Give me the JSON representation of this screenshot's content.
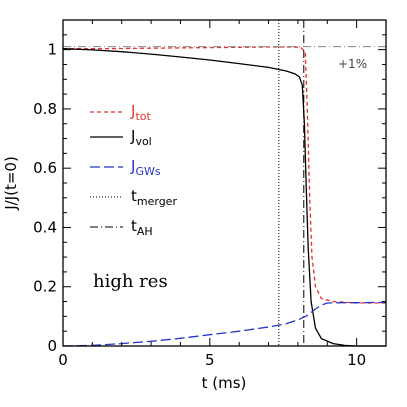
{
  "chart_data": {
    "type": "line",
    "xlabel": "t (ms)",
    "ylabel": "J/J(t=0)",
    "xlim": [
      0,
      11
    ],
    "ylim": [
      0,
      1.1
    ],
    "x_ticks": [
      0,
      5,
      10
    ],
    "y_ticks": [
      0,
      0.2,
      0.4,
      0.6,
      0.8,
      1
    ],
    "y_tick_labels": [
      "0",
      "0.2",
      "0.4",
      "0.6",
      "0.8",
      "1"
    ],
    "grid": false,
    "legend_placement": "left",
    "series": [
      {
        "name": "J_tot",
        "label_main": "J",
        "label_sub": "tot",
        "color": "#e8312f",
        "style": "short-dash",
        "points": [
          [
            0,
            1.003
          ],
          [
            1,
            1.003
          ],
          [
            2,
            1.004
          ],
          [
            3,
            1.005
          ],
          [
            4,
            1.006
          ],
          [
            5,
            1.007
          ],
          [
            6,
            1.008
          ],
          [
            7,
            1.009
          ],
          [
            7.8,
            1.009
          ],
          [
            8.1,
            1.008
          ],
          [
            8.25,
            0.99
          ],
          [
            8.32,
            0.8
          ],
          [
            8.4,
            0.5
          ],
          [
            8.48,
            0.3
          ],
          [
            8.6,
            0.2
          ],
          [
            8.8,
            0.16
          ],
          [
            9.2,
            0.15
          ],
          [
            10,
            0.145
          ],
          [
            10.5,
            0.145
          ],
          [
            11,
            0.145
          ]
        ]
      },
      {
        "name": "J_vol",
        "label_main": "J",
        "label_sub": "vol",
        "color": "#000000",
        "style": "solid",
        "points": [
          [
            0,
            1.003
          ],
          [
            1,
            0.999
          ],
          [
            2,
            0.993
          ],
          [
            3,
            0.985
          ],
          [
            4,
            0.975
          ],
          [
            5,
            0.965
          ],
          [
            6,
            0.953
          ],
          [
            7,
            0.94
          ],
          [
            7.6,
            0.928
          ],
          [
            7.9,
            0.918
          ],
          [
            8.05,
            0.908
          ],
          [
            8.15,
            0.88
          ],
          [
            8.22,
            0.75
          ],
          [
            8.28,
            0.55
          ],
          [
            8.35,
            0.33
          ],
          [
            8.45,
            0.15
          ],
          [
            8.6,
            0.06
          ],
          [
            8.8,
            0.025
          ],
          [
            9.2,
            0.008
          ],
          [
            9.6,
            0.002
          ],
          [
            10,
            0.0
          ],
          [
            11,
            0.0
          ]
        ]
      },
      {
        "name": "J_GWs",
        "label_main": "J",
        "label_sub": "GWs",
        "color": "#2435c4",
        "style": "long-dash",
        "points": [
          [
            0,
            0.0
          ],
          [
            1,
            0.002
          ],
          [
            2,
            0.008
          ],
          [
            3,
            0.016
          ],
          [
            4,
            0.026
          ],
          [
            5,
            0.038
          ],
          [
            6,
            0.05
          ],
          [
            7,
            0.064
          ],
          [
            7.6,
            0.075
          ],
          [
            8.0,
            0.088
          ],
          [
            8.3,
            0.102
          ],
          [
            8.6,
            0.125
          ],
          [
            8.8,
            0.138
          ],
          [
            9.0,
            0.145
          ],
          [
            9.5,
            0.146
          ],
          [
            10,
            0.146
          ],
          [
            11,
            0.147
          ]
        ]
      }
    ],
    "vlines": [
      {
        "name": "t_merger",
        "label_main": "t",
        "label_sub": "merger",
        "x": 7.35,
        "style": "dotted",
        "color": "#000000"
      },
      {
        "name": "t_AH",
        "label_main": "t",
        "label_sub": "AH",
        "x": 8.2,
        "style": "dash-dot",
        "color": "#000000"
      }
    ],
    "hlines": [
      {
        "name": "plus-one-percent",
        "y": 1.01,
        "style": "dash-dot",
        "color": "#777777"
      }
    ],
    "annotations": {
      "percent_label": "+1%",
      "resolution_label": "high res"
    }
  }
}
